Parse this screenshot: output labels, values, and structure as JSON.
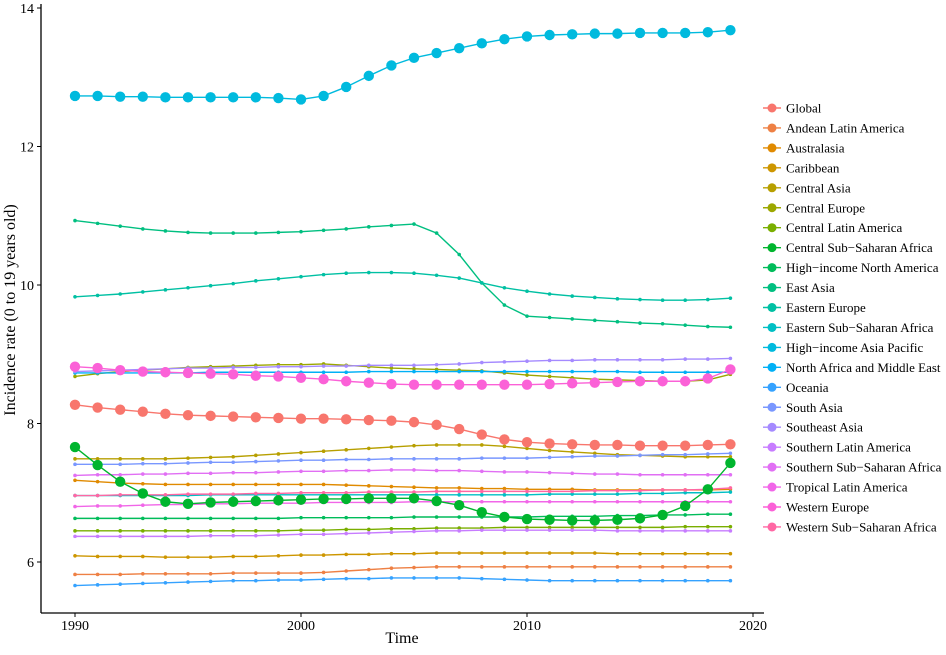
{
  "chart_data": {
    "type": "line",
    "title": "",
    "xlabel": "Time",
    "ylabel": "Incidence rate (0 to 19 years old)",
    "xlim": [
      1988.5,
      2020.5
    ],
    "ylim": [
      5.3,
      14.1
    ],
    "xticks": [
      "1990",
      "2000",
      "2010",
      "2020"
    ],
    "yticks": [
      "6",
      "8",
      "10",
      "12",
      "14"
    ],
    "grid": false,
    "legend_position": "right",
    "x": [
      1990,
      1991,
      1992,
      1993,
      1994,
      1995,
      1996,
      1997,
      1998,
      1999,
      2000,
      2001,
      2002,
      2003,
      2004,
      2005,
      2006,
      2007,
      2008,
      2009,
      2010,
      2011,
      2012,
      2013,
      2014,
      2015,
      2016,
      2017,
      2018,
      2019
    ],
    "series": [
      {
        "name": "Global",
        "color": "#F8766D",
        "highlighted": true,
        "values": [
          8.27,
          8.23,
          8.2,
          8.17,
          8.14,
          8.12,
          8.11,
          8.1,
          8.09,
          8.08,
          8.07,
          8.07,
          8.06,
          8.05,
          8.04,
          8.02,
          7.98,
          7.92,
          7.84,
          7.77,
          7.73,
          7.71,
          7.7,
          7.69,
          7.69,
          7.68,
          7.68,
          7.68,
          7.69,
          7.7
        ]
      },
      {
        "name": "Andean Latin America",
        "color": "#EE8044",
        "highlighted": false,
        "values": [
          5.82,
          5.82,
          5.82,
          5.83,
          5.83,
          5.83,
          5.83,
          5.84,
          5.84,
          5.84,
          5.84,
          5.85,
          5.87,
          5.89,
          5.91,
          5.92,
          5.93,
          5.93,
          5.93,
          5.93,
          5.93,
          5.93,
          5.93,
          5.93,
          5.93,
          5.93,
          5.93,
          5.93,
          5.93,
          5.93
        ]
      },
      {
        "name": "Australasia",
        "color": "#E08A00",
        "highlighted": false,
        "values": [
          7.18,
          7.16,
          7.14,
          7.13,
          7.12,
          7.12,
          7.12,
          7.12,
          7.12,
          7.12,
          7.12,
          7.12,
          7.11,
          7.1,
          7.09,
          7.08,
          7.07,
          7.07,
          7.06,
          7.06,
          7.05,
          7.05,
          7.05,
          7.04,
          7.04,
          7.04,
          7.04,
          7.04,
          7.04,
          7.05
        ]
      },
      {
        "name": "Caribbean",
        "color": "#CD9600",
        "highlighted": false,
        "values": [
          6.09,
          6.08,
          6.08,
          6.08,
          6.07,
          6.07,
          6.07,
          6.08,
          6.08,
          6.09,
          6.1,
          6.1,
          6.11,
          6.11,
          6.12,
          6.12,
          6.13,
          6.13,
          6.13,
          6.13,
          6.13,
          6.13,
          6.13,
          6.13,
          6.12,
          6.12,
          6.12,
          6.12,
          6.12,
          6.12
        ]
      },
      {
        "name": "Central Asia",
        "color": "#B79F00",
        "highlighted": false,
        "values": [
          7.49,
          7.49,
          7.49,
          7.49,
          7.49,
          7.5,
          7.51,
          7.52,
          7.54,
          7.56,
          7.58,
          7.6,
          7.62,
          7.64,
          7.66,
          7.68,
          7.69,
          7.69,
          7.69,
          7.67,
          7.64,
          7.61,
          7.59,
          7.57,
          7.55,
          7.54,
          7.53,
          7.52,
          7.52,
          7.52
        ]
      },
      {
        "name": "Central Europe",
        "color": "#9CA700",
        "highlighted": false,
        "values": [
          8.68,
          8.72,
          8.75,
          8.77,
          8.79,
          8.81,
          8.82,
          8.83,
          8.84,
          8.85,
          8.85,
          8.86,
          8.84,
          8.82,
          8.8,
          8.79,
          8.78,
          8.77,
          8.76,
          8.73,
          8.7,
          8.68,
          8.66,
          8.64,
          8.63,
          8.62,
          8.61,
          8.61,
          8.63,
          8.71
        ]
      },
      {
        "name": "Central Latin America",
        "color": "#7AAE00",
        "highlighted": false,
        "values": [
          6.45,
          6.45,
          6.45,
          6.45,
          6.45,
          6.45,
          6.45,
          6.45,
          6.45,
          6.45,
          6.46,
          6.46,
          6.47,
          6.47,
          6.48,
          6.48,
          6.49,
          6.49,
          6.49,
          6.5,
          6.5,
          6.5,
          6.5,
          6.5,
          6.5,
          6.5,
          6.5,
          6.51,
          6.51,
          6.51
        ]
      },
      {
        "name": "Central Sub−Saharan Africa",
        "color": "#00B52E",
        "highlighted": true,
        "values": [
          7.66,
          7.4,
          7.16,
          6.99,
          6.87,
          6.84,
          6.86,
          6.87,
          6.88,
          6.89,
          6.9,
          6.91,
          6.91,
          6.92,
          6.92,
          6.92,
          6.88,
          6.82,
          6.72,
          6.65,
          6.62,
          6.61,
          6.6,
          6.6,
          6.61,
          6.63,
          6.68,
          6.81,
          7.05,
          7.43
        ]
      },
      {
        "name": "High−income North America",
        "color": "#00BC5A",
        "highlighted": false,
        "values": [
          6.63,
          6.63,
          6.63,
          6.63,
          6.63,
          6.63,
          6.63,
          6.63,
          6.63,
          6.63,
          6.64,
          6.64,
          6.64,
          6.64,
          6.64,
          6.65,
          6.65,
          6.65,
          6.65,
          6.65,
          6.65,
          6.66,
          6.66,
          6.66,
          6.67,
          6.67,
          6.68,
          6.68,
          6.69,
          6.69
        ]
      },
      {
        "name": "East Asia",
        "color": "#00BF80",
        "highlighted": false,
        "values": [
          10.93,
          10.89,
          10.85,
          10.81,
          10.78,
          10.76,
          10.75,
          10.75,
          10.75,
          10.76,
          10.77,
          10.79,
          10.81,
          10.84,
          10.86,
          10.88,
          10.75,
          10.44,
          10.03,
          9.71,
          9.55,
          9.53,
          9.51,
          9.49,
          9.47,
          9.45,
          9.44,
          9.42,
          9.4,
          9.39
        ]
      },
      {
        "name": "Eastern Europe",
        "color": "#00C0A3",
        "highlighted": false,
        "values": [
          9.83,
          9.85,
          9.87,
          9.9,
          9.93,
          9.96,
          9.99,
          10.02,
          10.06,
          10.09,
          10.12,
          10.15,
          10.17,
          10.18,
          10.18,
          10.17,
          10.14,
          10.1,
          10.03,
          9.96,
          9.91,
          9.87,
          9.84,
          9.82,
          9.8,
          9.79,
          9.78,
          9.78,
          9.79,
          9.81
        ]
      },
      {
        "name": "Eastern Sub−Saharan Africa",
        "color": "#00BFC4",
        "highlighted": false,
        "values": [
          6.96,
          6.96,
          6.96,
          6.96,
          6.96,
          6.96,
          6.97,
          6.97,
          6.97,
          6.97,
          6.97,
          6.97,
          6.97,
          6.97,
          6.97,
          6.97,
          6.97,
          6.97,
          6.97,
          6.97,
          6.97,
          6.98,
          6.98,
          6.98,
          6.98,
          6.99,
          6.99,
          7.0,
          7.0,
          7.01
        ]
      },
      {
        "name": "High−income Asia Pacific",
        "color": "#00BADE",
        "highlighted": true,
        "values": [
          12.73,
          12.73,
          12.72,
          12.72,
          12.71,
          12.71,
          12.71,
          12.71,
          12.71,
          12.7,
          12.68,
          12.73,
          12.86,
          13.02,
          13.17,
          13.28,
          13.35,
          13.42,
          13.49,
          13.55,
          13.59,
          13.61,
          13.62,
          13.63,
          13.63,
          13.64,
          13.64,
          13.64,
          13.65,
          13.68
        ]
      },
      {
        "name": "North Africa and Middle East",
        "color": "#00B0F6",
        "highlighted": false,
        "values": [
          8.73,
          8.73,
          8.73,
          8.73,
          8.73,
          8.73,
          8.74,
          8.74,
          8.74,
          8.74,
          8.74,
          8.74,
          8.74,
          8.75,
          8.75,
          8.75,
          8.75,
          8.75,
          8.75,
          8.75,
          8.75,
          8.75,
          8.75,
          8.75,
          8.75,
          8.74,
          8.74,
          8.74,
          8.74,
          8.74
        ]
      },
      {
        "name": "Oceania",
        "color": "#35A2FF",
        "highlighted": false,
        "values": [
          5.66,
          5.67,
          5.68,
          5.69,
          5.7,
          5.71,
          5.72,
          5.73,
          5.73,
          5.74,
          5.74,
          5.75,
          5.76,
          5.76,
          5.77,
          5.77,
          5.77,
          5.77,
          5.76,
          5.75,
          5.74,
          5.73,
          5.73,
          5.73,
          5.73,
          5.73,
          5.73,
          5.73,
          5.73,
          5.73
        ]
      },
      {
        "name": "South Asia",
        "color": "#7997FF",
        "highlighted": false,
        "values": [
          7.41,
          7.41,
          7.41,
          7.42,
          7.42,
          7.43,
          7.44,
          7.44,
          7.45,
          7.46,
          7.47,
          7.47,
          7.48,
          7.48,
          7.49,
          7.49,
          7.49,
          7.49,
          7.5,
          7.5,
          7.5,
          7.51,
          7.52,
          7.53,
          7.53,
          7.54,
          7.55,
          7.55,
          7.56,
          7.57
        ]
      },
      {
        "name": "Southeast Asia",
        "color": "#A58AFF",
        "highlighted": false,
        "values": [
          8.75,
          8.76,
          8.77,
          8.78,
          8.79,
          8.8,
          8.8,
          8.81,
          8.81,
          8.82,
          8.82,
          8.83,
          8.83,
          8.84,
          8.84,
          8.84,
          8.85,
          8.86,
          8.88,
          8.89,
          8.9,
          8.91,
          8.91,
          8.92,
          8.92,
          8.92,
          8.92,
          8.93,
          8.93,
          8.94
        ]
      },
      {
        "name": "Southern Latin America",
        "color": "#C77CFF",
        "highlighted": false,
        "values": [
          6.37,
          6.37,
          6.37,
          6.37,
          6.37,
          6.37,
          6.38,
          6.38,
          6.38,
          6.39,
          6.4,
          6.4,
          6.41,
          6.42,
          6.43,
          6.44,
          6.45,
          6.45,
          6.46,
          6.46,
          6.46,
          6.46,
          6.46,
          6.46,
          6.45,
          6.45,
          6.45,
          6.45,
          6.45,
          6.45
        ]
      },
      {
        "name": "Southern Sub−Saharan Africa",
        "color": "#E16FF4",
        "highlighted": false,
        "values": [
          7.25,
          7.26,
          7.26,
          7.27,
          7.27,
          7.28,
          7.28,
          7.29,
          7.29,
          7.3,
          7.31,
          7.31,
          7.32,
          7.32,
          7.33,
          7.33,
          7.32,
          7.32,
          7.31,
          7.3,
          7.3,
          7.29,
          7.28,
          7.27,
          7.27,
          7.26,
          7.26,
          7.26,
          7.26,
          7.26
        ]
      },
      {
        "name": "Tropical Latin America",
        "color": "#F166E8",
        "highlighted": false,
        "values": [
          6.8,
          6.81,
          6.81,
          6.82,
          6.83,
          6.83,
          6.84,
          6.84,
          6.85,
          6.85,
          6.85,
          6.86,
          6.86,
          6.86,
          6.86,
          6.87,
          6.87,
          6.87,
          6.87,
          6.87,
          6.87,
          6.87,
          6.87,
          6.87,
          6.87,
          6.87,
          6.87,
          6.87,
          6.87,
          6.87
        ]
      },
      {
        "name": "Western Europe",
        "color": "#FB61D7",
        "highlighted": true,
        "values": [
          8.82,
          8.8,
          8.77,
          8.75,
          8.74,
          8.73,
          8.72,
          8.71,
          8.69,
          8.68,
          8.66,
          8.64,
          8.61,
          8.59,
          8.57,
          8.56,
          8.56,
          8.56,
          8.56,
          8.56,
          8.56,
          8.57,
          8.58,
          8.59,
          8.6,
          8.61,
          8.61,
          8.61,
          8.65,
          8.78
        ]
      },
      {
        "name": "Western Sub−Saharan Africa",
        "color": "#FF67A4",
        "highlighted": false,
        "values": [
          6.96,
          6.96,
          6.97,
          6.97,
          6.97,
          6.98,
          6.98,
          6.98,
          6.99,
          6.99,
          7.0,
          7.0,
          7.0,
          7.01,
          7.01,
          7.01,
          7.02,
          7.02,
          7.02,
          7.02,
          7.02,
          7.02,
          7.02,
          7.03,
          7.03,
          7.03,
          7.04,
          7.04,
          7.05,
          7.07
        ]
      }
    ]
  }
}
